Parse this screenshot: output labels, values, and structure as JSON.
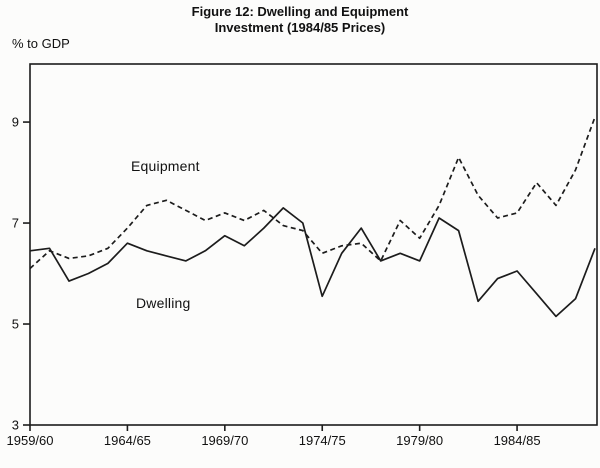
{
  "figure": {
    "title_line1": "Figure 12: Dwelling and Equipment",
    "title_line2": "Investment (1984/85 Prices)",
    "y_axis_label": "% to GDP"
  },
  "chart_data": {
    "type": "line",
    "title": "Figure 12: Dwelling and Equipment Investment (1984/85 Prices)",
    "ylabel": "% to GDP",
    "xlabel": "",
    "grid": false,
    "legend_position": "inline-labels",
    "ylim": [
      3,
      10.15
    ],
    "y_ticks": [
      3,
      5,
      7,
      9
    ],
    "x_tick_labels": [
      "1959/60",
      "1964/65",
      "1969/70",
      "1974/75",
      "1979/80",
      "1984/85"
    ],
    "x_tick_indices": [
      0,
      5,
      10,
      15,
      20,
      25
    ],
    "x": [
      "1959/60",
      "1960/61",
      "1961/62",
      "1962/63",
      "1963/64",
      "1964/65",
      "1965/66",
      "1966/67",
      "1967/68",
      "1968/69",
      "1969/70",
      "1970/71",
      "1971/72",
      "1972/73",
      "1973/74",
      "1974/75",
      "1975/76",
      "1976/77",
      "1977/78",
      "1978/79",
      "1979/80",
      "1980/81",
      "1981/82",
      "1982/83",
      "1983/84",
      "1984/85",
      "1985/86",
      "1986/87",
      "1987/88",
      "1988/89"
    ],
    "line_color": "#1c1c1c",
    "series": [
      {
        "name": "Equipment",
        "style": "dashed",
        "values": [
          6.1,
          6.45,
          6.3,
          6.35,
          6.5,
          6.9,
          7.35,
          7.45,
          7.25,
          7.05,
          7.2,
          7.05,
          7.25,
          6.95,
          6.85,
          6.4,
          6.55,
          6.6,
          6.25,
          7.05,
          6.7,
          7.35,
          8.3,
          7.55,
          7.1,
          7.2,
          7.8,
          7.35,
          8.05,
          9.1
        ]
      },
      {
        "name": "Dwelling",
        "style": "solid",
        "values": [
          6.45,
          6.5,
          5.85,
          6.0,
          6.2,
          6.6,
          6.45,
          6.35,
          6.25,
          6.45,
          6.75,
          6.55,
          6.9,
          7.3,
          7.0,
          5.55,
          6.4,
          6.9,
          6.25,
          6.4,
          6.25,
          7.1,
          6.85,
          5.45,
          5.9,
          6.05,
          5.6,
          5.15,
          5.5,
          6.5
        ]
      }
    ]
  }
}
